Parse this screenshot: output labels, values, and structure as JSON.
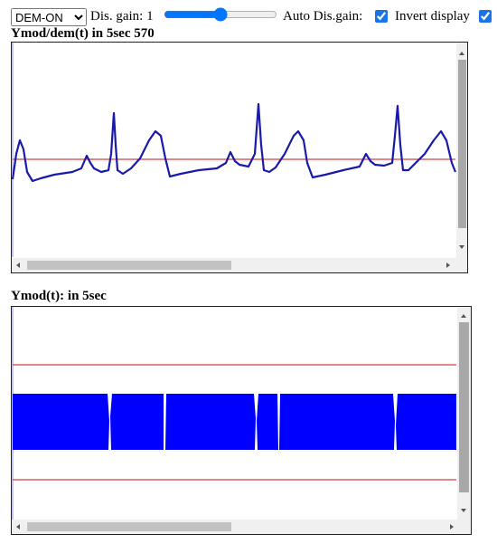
{
  "controls": {
    "mode_select": "DEM-ON",
    "gain_label": "Dis. gain: 1",
    "auto_gain_label": "Auto Dis.gain:",
    "auto_gain_checked": true,
    "invert_label": "Invert display",
    "invert_checked": true
  },
  "panels": [
    {
      "title": "Ymod/dem(t) in 5sec 570"
    },
    {
      "title": "Ymod(t): in 5sec"
    }
  ]
}
